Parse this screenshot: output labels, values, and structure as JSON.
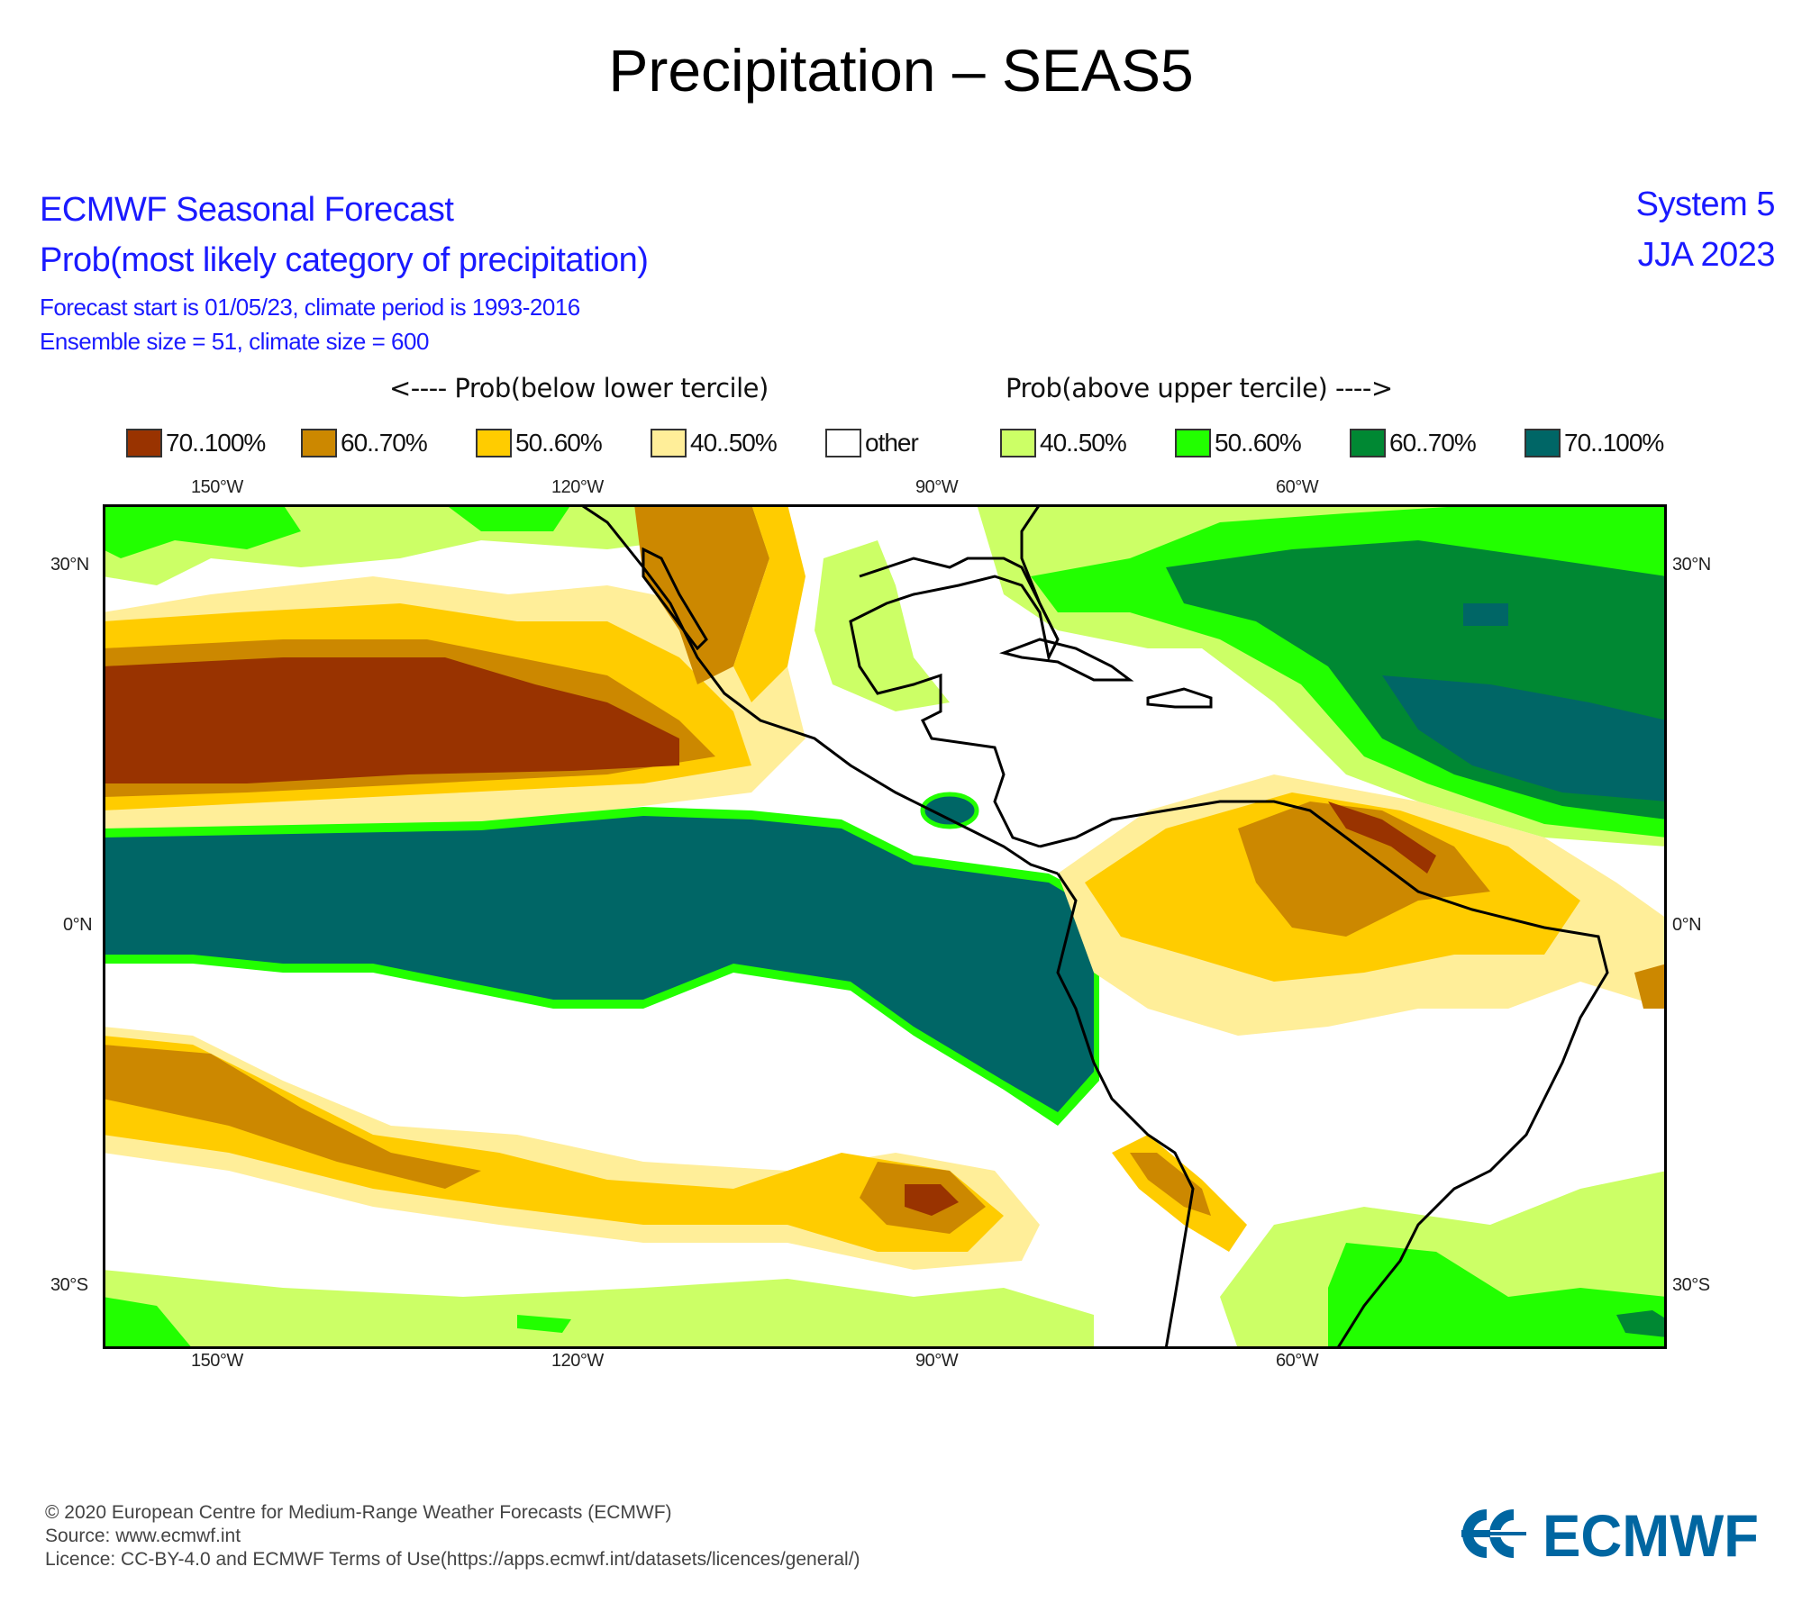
{
  "title": "Precipitation – SEAS5",
  "header": {
    "line1": "ECMWF Seasonal Forecast",
    "line2": "Prob(most likely category of precipitation)",
    "line3": "Forecast start is 01/05/23, climate period is 1993-2016",
    "line4": "Ensemble size = 51, climate size = 600",
    "system": "System 5",
    "period": "JJA 2023"
  },
  "legend": {
    "below_label": "<---- Prob(below lower tercile)",
    "above_label": "Prob(above upper tercile) ---->",
    "items": [
      {
        "label": "70..100%",
        "color": "#993300"
      },
      {
        "label": "60..70%",
        "color": "#cc8800"
      },
      {
        "label": "50..60%",
        "color": "#ffcc00"
      },
      {
        "label": "40..50%",
        "color": "#ffee99"
      },
      {
        "label": "other",
        "color": "#ffffff"
      },
      {
        "label": "40..50%",
        "color": "#ccff66"
      },
      {
        "label": "50..60%",
        "color": "#22ff00"
      },
      {
        "label": "60..70%",
        "color": "#008833"
      },
      {
        "label": "70..100%",
        "color": "#006666"
      }
    ]
  },
  "map": {
    "lon_labels": [
      "150°W",
      "120°W",
      "90°W",
      "60°W"
    ],
    "lat_labels": [
      "30°N",
      "0°N",
      "30°S"
    ],
    "coast_color": "#000000"
  },
  "footer": {
    "copyright": "© 2020 European Centre for Medium-Range Weather Forecasts (ECMWF)",
    "source": "Source: www.ecmwf.int",
    "licence": "Licence: CC-BY-4.0 and ECMWF Terms of Use(https://apps.ecmwf.int/datasets/licences/general/)"
  },
  "logo": {
    "text": "ECMWF",
    "color": "#0066a1"
  }
}
